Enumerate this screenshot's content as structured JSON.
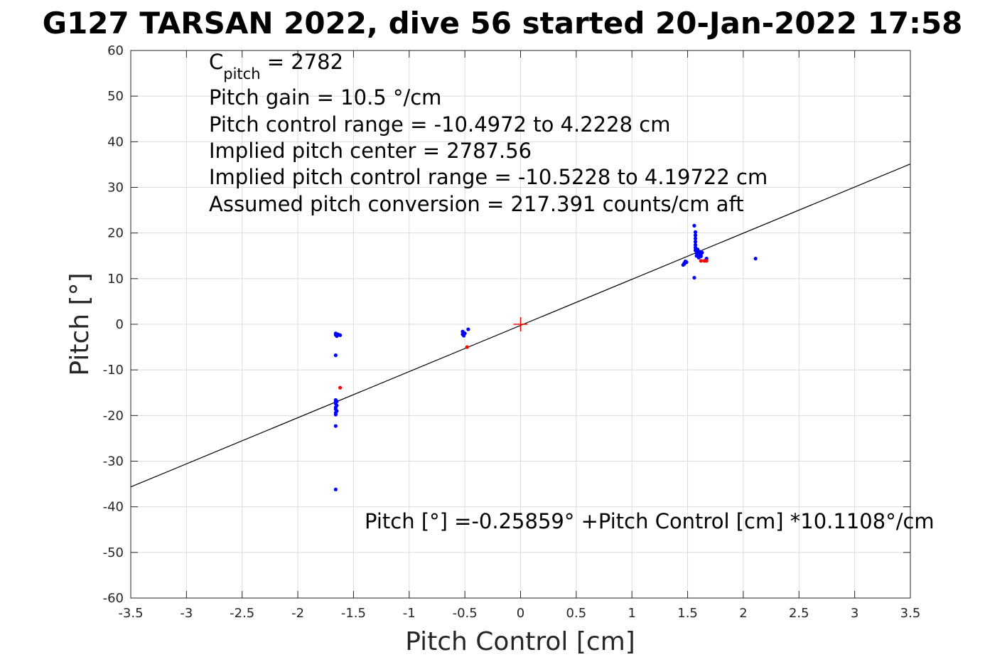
{
  "chart_data": {
    "type": "scatter",
    "title": "G127 TARSAN 2022, dive 56 started 20-Jan-2022 17:58",
    "xlabel": "Pitch Control [cm]",
    "ylabel": "Pitch [°]",
    "xlim": [
      -3.5,
      3.5
    ],
    "ylim": [
      -60,
      60
    ],
    "xticks": [
      -3.5,
      -3,
      -2.5,
      -2,
      -1.5,
      -1,
      -0.5,
      0,
      0.5,
      1,
      1.5,
      2,
      2.5,
      3,
      3.5
    ],
    "xtick_labels": [
      "-3.5",
      "-3",
      "-2.5",
      "-2",
      "-1.5",
      "-1",
      "-0.5",
      "0",
      "0.5",
      "1",
      "1.5",
      "2",
      "2.5",
      "3",
      "3.5"
    ],
    "yticks": [
      -60,
      -50,
      -40,
      -30,
      -20,
      -10,
      0,
      10,
      20,
      30,
      40,
      50,
      60
    ],
    "ytick_labels": [
      "-60",
      "-50",
      "-40",
      "-30",
      "-20",
      "-10",
      "0",
      "10",
      "20",
      "30",
      "40",
      "50",
      "60"
    ],
    "grid": true,
    "annotations": {
      "c_pitch_main": "C",
      "c_pitch_sub": "pitch",
      "c_pitch_rest": " = 2782",
      "line2": "Pitch gain = 10.5 °/cm",
      "line3": "Pitch control range = -10.4972 to 4.2228 cm",
      "line4": "Implied pitch center = 2787.56",
      "line5": "Implied pitch control range = -10.5228 to 4.19722 cm",
      "line6": "Assumed pitch conversion = 217.391 counts/cm aft",
      "fit": "Pitch [°] =-0.25859° +Pitch Control [cm] *10.1108°/cm"
    },
    "fit_line": {
      "intercept": -0.25859,
      "slope": 10.1108,
      "color": "#000000"
    },
    "center_marker": {
      "x": 0,
      "y": 0,
      "color": "#ff0000",
      "symbol": "plus"
    },
    "series": [
      {
        "color": "#0000ff",
        "points": [
          [
            -1.66,
            -2.0
          ],
          [
            -1.66,
            -2.3
          ],
          [
            -1.65,
            -2.6
          ],
          [
            -1.64,
            -2.2
          ],
          [
            -1.62,
            -2.4
          ],
          [
            -1.66,
            -6.8
          ],
          [
            -1.66,
            -16.6
          ],
          [
            -1.66,
            -17.0
          ],
          [
            -1.66,
            -17.4
          ],
          [
            -1.65,
            -17.8
          ],
          [
            -1.66,
            -18.2
          ],
          [
            -1.66,
            -18.6
          ],
          [
            -1.65,
            -19.0
          ],
          [
            -1.66,
            -19.4
          ],
          [
            -1.66,
            -19.8
          ],
          [
            -1.65,
            -16.9
          ],
          [
            -1.66,
            -22.3
          ],
          [
            -1.66,
            -36.2
          ],
          [
            -0.52,
            -1.6
          ],
          [
            -0.51,
            -1.9
          ],
          [
            -0.52,
            -2.2
          ],
          [
            -0.51,
            -2.5
          ],
          [
            -0.5,
            -2.0
          ],
          [
            -0.47,
            -1.1
          ],
          [
            1.46,
            13.0
          ],
          [
            1.47,
            13.4
          ],
          [
            1.48,
            13.8
          ],
          [
            1.47,
            13.2
          ],
          [
            1.49,
            13.6
          ],
          [
            1.56,
            21.6
          ],
          [
            1.57,
            20.2
          ],
          [
            1.57,
            19.5
          ],
          [
            1.57,
            18.8
          ],
          [
            1.57,
            18.1
          ],
          [
            1.57,
            17.4
          ],
          [
            1.57,
            16.8
          ],
          [
            1.57,
            16.2
          ],
          [
            1.58,
            15.6
          ],
          [
            1.58,
            15.0
          ],
          [
            1.59,
            15.8
          ],
          [
            1.6,
            15.3
          ],
          [
            1.6,
            14.6
          ],
          [
            1.61,
            15.9
          ],
          [
            1.62,
            15.4
          ],
          [
            1.63,
            15.7
          ],
          [
            1.62,
            14.9
          ],
          [
            1.59,
            16.4
          ],
          [
            1.58,
            16.0
          ],
          [
            1.56,
            10.2
          ],
          [
            1.67,
            14.4
          ],
          [
            2.11,
            14.4
          ]
        ]
      },
      {
        "color": "#ff0000",
        "points": [
          [
            -1.62,
            -13.9
          ],
          [
            -0.48,
            -5.0
          ],
          [
            1.62,
            13.9
          ],
          [
            1.65,
            13.9
          ],
          [
            1.67,
            13.9
          ]
        ]
      }
    ]
  }
}
